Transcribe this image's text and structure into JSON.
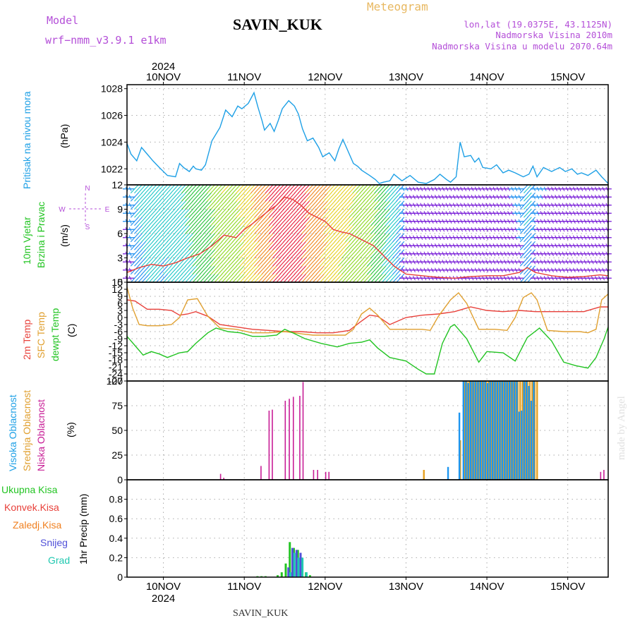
{
  "header": {
    "model_label": "Model",
    "model_name": "wrf−nmm_v3.9.1  e1km",
    "station": "SAVIN_KUK",
    "product": "Meteogram",
    "coords": "lon,lat (19.0375E, 43.1125N)",
    "elevation": "Nadmorska Visina 2010m",
    "model_elevation": "Nadmorska Visina u modelu 2070.64m",
    "footer_station": "SAVIN_KUK",
    "watermark": "made by Angel"
  },
  "colors": {
    "pressure": "#1ea0e6",
    "temp2m": "#e8403a",
    "sfc_temp": "#e0a030",
    "dewpt": "#22c422",
    "cloud_high": "#1e96f0",
    "cloud_mid": "#e6a020",
    "cloud_low": "#c81e96",
    "precip_total": "#22c422",
    "precip_conv": "#e8403a",
    "precip_frozen": "#f08020",
    "precip_snow": "#5050d8",
    "precip_graupel": "#20c8b0",
    "label_purple": "#b44fd8"
  },
  "chart_data": [
    {
      "type": "line",
      "panel": "pressure",
      "ylabel_left": "Pritisak na nivou mora",
      "unit": "(hPa)",
      "x_tick_labels": [
        "10NOV",
        "11NOV",
        "12NOV",
        "13NOV",
        "14NOV",
        "15NOV"
      ],
      "x_year": "2024",
      "xlim_days": [
        9.55,
        15.5
      ],
      "ylim": [
        1020.8,
        1028.3
      ],
      "yticks": [
        1022,
        1024,
        1026,
        1028
      ],
      "grid": true,
      "series": [
        {
          "x": [
            9.55,
            9.6,
            9.67,
            9.73,
            9.8,
            9.87,
            9.95,
            10.05,
            10.15,
            10.2,
            10.25,
            10.32,
            10.37,
            10.4,
            10.47,
            10.52,
            10.6,
            10.7,
            10.77,
            10.85,
            10.92,
            10.97,
            11.05,
            11.12,
            11.17,
            11.22,
            11.25,
            11.32,
            11.37,
            11.42,
            11.47,
            11.55,
            11.62,
            11.67,
            11.72,
            11.78,
            11.85,
            11.92,
            11.97,
            12.05,
            12.12,
            12.17,
            12.22,
            12.27,
            12.35,
            12.4,
            12.45,
            12.55,
            12.62,
            12.67,
            12.72,
            12.8,
            12.85,
            12.95,
            13.05,
            13.15,
            13.25,
            13.35,
            13.42,
            13.5,
            13.55,
            13.62,
            13.67,
            13.72,
            13.8,
            13.85,
            13.9,
            13.95,
            14.05,
            14.12,
            14.2,
            14.27,
            14.35,
            14.45,
            14.52,
            14.57,
            14.62,
            14.7,
            14.8,
            14.9,
            14.97,
            15.05,
            15.12,
            15.17,
            15.25,
            15.35,
            15.42,
            15.5
          ],
          "y": [
            1023.9,
            1023.1,
            1022.6,
            1023.6,
            1023.1,
            1022.6,
            1022.1,
            1021.5,
            1021.4,
            1022.4,
            1022.1,
            1021.8,
            1022.2,
            1022.0,
            1021.9,
            1022.3,
            1024.1,
            1025.1,
            1026.4,
            1025.9,
            1026.7,
            1026.5,
            1026.9,
            1027.7,
            1026.6,
            1025.6,
            1024.9,
            1025.4,
            1024.8,
            1025.6,
            1026.5,
            1027.1,
            1026.7,
            1026.1,
            1025.0,
            1024.1,
            1024.3,
            1023.6,
            1022.9,
            1023.2,
            1022.6,
            1023.5,
            1024.2,
            1023.5,
            1022.4,
            1022.2,
            1021.9,
            1021.5,
            1021.2,
            1020.9,
            1021.0,
            1021.1,
            1021.6,
            1021.1,
            1021.5,
            1021.0,
            1020.9,
            1021.2,
            1021.6,
            1021.2,
            1021.0,
            1021.4,
            1024.0,
            1022.9,
            1023.0,
            1022.5,
            1022.8,
            1022.1,
            1022.0,
            1022.3,
            1021.7,
            1021.9,
            1021.7,
            1021.4,
            1021.6,
            1022.2,
            1021.4,
            1022.1,
            1021.8,
            1022.1,
            1021.8,
            1022.0,
            1021.6,
            1021.7,
            1021.5,
            1021.9,
            1021.4,
            1020.9
          ]
        }
      ]
    },
    {
      "type": "line",
      "panel": "wind",
      "ylabel_left_1": "10m Vjetar",
      "ylabel_left_2": "Brzina i Pravac",
      "unit": "(m/s)",
      "compass_n": "N",
      "compass_s": "S",
      "compass_w": "W",
      "compass_e": "E",
      "ylim": [
        0,
        12
      ],
      "yticks": [
        0,
        3,
        6,
        9,
        12
      ],
      "grid": true,
      "series": [
        {
          "x": [
            9.55,
            9.7,
            9.85,
            10.0,
            10.15,
            10.3,
            10.45,
            10.6,
            10.75,
            10.9,
            11.0,
            11.1,
            11.2,
            11.3,
            11.4,
            11.5,
            11.6,
            11.7,
            11.8,
            11.9,
            12.0,
            12.1,
            12.2,
            12.3,
            12.4,
            12.5,
            12.6,
            12.7,
            12.85,
            13.0,
            13.2,
            13.4,
            13.6,
            13.8,
            14.0,
            14.2,
            14.4,
            14.5,
            14.6,
            14.8,
            15.0,
            15.2,
            15.4,
            15.5
          ],
          "y": [
            1.2,
            1.8,
            2.2,
            2.0,
            2.4,
            3.0,
            3.5,
            4.5,
            5.8,
            5.5,
            6.5,
            7.2,
            8.0,
            8.8,
            9.5,
            10.5,
            10.2,
            9.5,
            8.5,
            8.0,
            7.5,
            6.5,
            6.2,
            6.0,
            5.5,
            5.0,
            4.5,
            3.5,
            2.0,
            1.0,
            0.8,
            0.6,
            0.5,
            0.7,
            0.8,
            0.8,
            1.2,
            1.8,
            1.2,
            0.8,
            0.6,
            0.7,
            0.9,
            0.8
          ]
        }
      ]
    },
    {
      "type": "line",
      "panel": "temperature",
      "ylabel_left_1": "2m Temp",
      "ylabel_left_2": "SFC Temp",
      "ylabel_left_3": "dewpt Temp",
      "unit": "(C)",
      "ylim": [
        -27,
        15
      ],
      "yticks": [
        -27,
        -24,
        -21,
        -18,
        -15,
        -12,
        -9,
        -6,
        -3,
        0,
        3,
        6,
        9,
        12,
        15
      ],
      "grid": true,
      "series": [
        {
          "name": "2m Temp",
          "x": [
            9.55,
            9.65,
            9.8,
            9.95,
            10.1,
            10.2,
            10.3,
            10.4,
            10.55,
            10.7,
            10.9,
            11.1,
            11.3,
            11.5,
            11.7,
            11.9,
            12.1,
            12.3,
            12.45,
            12.55,
            12.65,
            12.8,
            13.0,
            13.2,
            13.4,
            13.6,
            13.8,
            14.0,
            14.2,
            14.4,
            14.6,
            14.8,
            15.0,
            15.2,
            15.4,
            15.5
          ],
          "y": [
            7.5,
            7.0,
            3.5,
            3.5,
            3.0,
            1.0,
            1.5,
            2.5,
            0.5,
            -3.0,
            -4.0,
            -5.0,
            -5.5,
            -6.0,
            -6.0,
            -6.5,
            -6.5,
            -5.5,
            -1.5,
            1.0,
            0.5,
            -3.0,
            0.0,
            1.0,
            1.5,
            2.5,
            4.5,
            3.0,
            2.5,
            3.0,
            2.5,
            2.5,
            2.5,
            2.5,
            4.5,
            4.5
          ]
        },
        {
          "name": "SFC Temp",
          "x": [
            9.55,
            9.62,
            9.7,
            9.8,
            9.95,
            10.1,
            10.2,
            10.3,
            10.42,
            10.55,
            10.7,
            10.9,
            11.1,
            11.3,
            11.5,
            11.62,
            11.72,
            11.85,
            12.05,
            12.25,
            12.35,
            12.45,
            12.55,
            12.65,
            12.8,
            13.0,
            13.2,
            13.3,
            13.4,
            13.55,
            13.65,
            13.75,
            13.9,
            14.1,
            14.25,
            14.35,
            14.45,
            14.55,
            14.62,
            14.75,
            14.95,
            15.15,
            15.25,
            15.35,
            15.42,
            15.5
          ],
          "y": [
            13.0,
            4.0,
            -3.0,
            -3.5,
            -3.5,
            -3.0,
            0.0,
            7.5,
            8.0,
            0.5,
            -4.5,
            -5.0,
            -6.5,
            -6.5,
            -6.0,
            -6.5,
            -7.0,
            -7.5,
            -7.5,
            -7.5,
            -5.0,
            1.5,
            4.0,
            1.0,
            -5.0,
            -5.0,
            -5.0,
            -5.5,
            0.5,
            7.5,
            10.5,
            6.0,
            -5.0,
            -5.0,
            -5.5,
            0.0,
            8.5,
            10.5,
            7.5,
            -5.5,
            -6.0,
            -6.0,
            -6.5,
            -5.0,
            7.5,
            10.0
          ]
        },
        {
          "name": "dewpt Temp",
          "x": [
            9.55,
            9.65,
            9.75,
            9.85,
            9.95,
            10.05,
            10.2,
            10.3,
            10.4,
            10.55,
            10.65,
            10.8,
            10.95,
            11.1,
            11.25,
            11.4,
            11.5,
            11.6,
            11.75,
            11.95,
            12.15,
            12.3,
            12.45,
            12.55,
            12.65,
            12.8,
            13.0,
            13.15,
            13.25,
            13.35,
            13.45,
            13.55,
            13.6,
            13.65,
            13.75,
            13.9,
            14.0,
            14.2,
            14.35,
            14.5,
            14.65,
            14.8,
            14.95,
            15.1,
            15.25,
            15.35,
            15.45,
            15.5
          ],
          "y": [
            -8.0,
            -12.0,
            -16.0,
            -14.5,
            -15.5,
            -17.0,
            -15.0,
            -14.5,
            -11.0,
            -6.5,
            -4.5,
            -6.0,
            -6.5,
            -8.0,
            -8.0,
            -7.5,
            -5.0,
            -6.5,
            -9.0,
            -11.0,
            -12.5,
            -11.0,
            -10.5,
            -9.5,
            -13.0,
            -17.0,
            -18.5,
            -22.0,
            -24.0,
            -24.0,
            -11.0,
            -4.0,
            -3.0,
            -5.0,
            -9.0,
            -19.0,
            -14.5,
            -15.0,
            -18.5,
            -8.5,
            -4.5,
            -10.0,
            -19.0,
            -20.5,
            -21.5,
            -17.0,
            -9.0,
            -4.0
          ]
        }
      ]
    },
    {
      "type": "bar",
      "panel": "cloud",
      "ylabel_left_1": "Visoka Oblacnost",
      "ylabel_left_2": "Srednja Oblacnost",
      "ylabel_left_3": "Niska Oblacnost",
      "unit": "(%)",
      "ylim": [
        0,
        100
      ],
      "yticks": [
        0,
        25,
        50,
        75,
        100
      ],
      "grid": true,
      "series": [
        {
          "name": "Niska Oblacnost",
          "x": [
            10.7,
            10.74,
            11.2,
            11.3,
            11.34,
            11.5,
            11.55,
            11.6,
            11.68,
            11.72,
            11.85,
            11.9,
            12.0,
            12.04,
            15.4,
            15.44
          ],
          "values": [
            6,
            2,
            14,
            70,
            71,
            80,
            82,
            84,
            85,
            99,
            10,
            10,
            8,
            8,
            8,
            10
          ]
        },
        {
          "name": "Srednja Oblacnost",
          "x": [
            13.2,
            13.65,
            13.7,
            13.73,
            13.76,
            13.79,
            13.82,
            13.85,
            13.88,
            13.91,
            13.94,
            13.97,
            14.0,
            14.03,
            14.06,
            14.09,
            14.12,
            14.15,
            14.18,
            14.21,
            14.24,
            14.27,
            14.3,
            14.33,
            14.36,
            14.39,
            14.42,
            14.45,
            14.48,
            14.51,
            14.54,
            14.57,
            14.6
          ],
          "values": [
            10,
            40,
            100,
            100,
            100,
            100,
            100,
            100,
            100,
            100,
            100,
            100,
            100,
            100,
            100,
            100,
            100,
            100,
            100,
            100,
            100,
            100,
            100,
            100,
            100,
            100,
            100,
            100,
            100,
            100,
            100,
            100,
            100
          ]
        },
        {
          "name": "Visoka Oblacnost",
          "x": [
            13.52,
            13.66,
            13.71,
            13.74,
            13.77,
            13.8,
            13.83,
            13.86,
            13.89,
            13.92,
            13.95,
            13.98,
            14.01,
            14.04,
            14.07,
            14.1,
            14.13,
            14.16,
            14.19,
            14.22,
            14.25,
            14.28,
            14.31,
            14.34,
            14.37,
            14.4,
            14.43,
            14.46,
            14.49,
            14.52,
            14.55,
            14.58
          ],
          "values": [
            13,
            68,
            100,
            100,
            98,
            100,
            100,
            100,
            100,
            100,
            100,
            100,
            98,
            100,
            100,
            100,
            100,
            100,
            100,
            100,
            100,
            100,
            100,
            100,
            100,
            69,
            70,
            100,
            100,
            95,
            80,
            100
          ]
        }
      ]
    },
    {
      "type": "bar",
      "panel": "precip",
      "legend": [
        "Ukupna Kisa",
        "Konvek.Kisa",
        "Zaledj.Kisa",
        "Snijeg",
        "Grad"
      ],
      "ylabel": "1hr Precip (mm)",
      "ylim": [
        0,
        1.0
      ],
      "yticks": [
        0,
        0.2,
        0.4,
        0.6,
        0.8
      ],
      "ytick_labels": [
        "0",
        "0.2",
        "0.4",
        "0.6",
        "0.8"
      ],
      "grid": true,
      "series": [
        {
          "name": "Ukupna Kisa",
          "x": [
            11.15,
            11.2,
            11.25,
            11.4,
            11.45,
            11.5,
            11.55,
            11.6,
            11.65,
            11.7,
            11.75,
            11.8
          ],
          "values": [
            0.01,
            0.01,
            0.01,
            0.02,
            0.05,
            0.14,
            0.36,
            0.3,
            0.28,
            0.12,
            0.05,
            0.02
          ]
        },
        {
          "name": "Snijeg",
          "x": [
            11.52,
            11.57,
            11.62,
            11.67
          ],
          "values": [
            0.1,
            0.3,
            0.28,
            0.25
          ]
        },
        {
          "name": "Grad",
          "x": [
            11.53,
            11.58,
            11.63,
            11.68,
            11.73
          ],
          "values": [
            0.05,
            0.25,
            0.2,
            0.2,
            0.05
          ]
        }
      ]
    }
  ]
}
